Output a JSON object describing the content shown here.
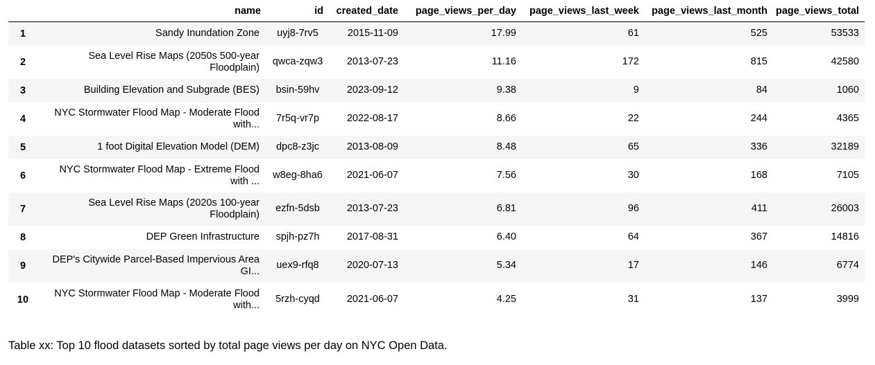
{
  "table": {
    "headers": {
      "name": "name",
      "id": "id",
      "created_date": "created_date",
      "page_views_per_day": "page_views_per_day",
      "page_views_last_week": "page_views_last_week",
      "page_views_last_month": "page_views_last_month",
      "page_views_total": "page_views_total"
    },
    "rows": [
      {
        "index": "1",
        "name": "Sandy Inundation Zone",
        "id": "uyj8-7rv5",
        "created_date": "2015-11-09",
        "page_views_per_day": "17.99",
        "page_views_last_week": "61",
        "page_views_last_month": "525",
        "page_views_total": "53533"
      },
      {
        "index": "2",
        "name": "Sea Level Rise Maps (2050s 500-year Floodplain)",
        "id": "qwca-zqw3",
        "created_date": "2013-07-23",
        "page_views_per_day": "11.16",
        "page_views_last_week": "172",
        "page_views_last_month": "815",
        "page_views_total": "42580"
      },
      {
        "index": "3",
        "name": "Building Elevation and Subgrade (BES)",
        "id": "bsin-59hv",
        "created_date": "2023-09-12",
        "page_views_per_day": "9.38",
        "page_views_last_week": "9",
        "page_views_last_month": "84",
        "page_views_total": "1060"
      },
      {
        "index": "4",
        "name": "NYC Stormwater Flood Map - Moderate Flood with...",
        "id": "7r5q-vr7p",
        "created_date": "2022-08-17",
        "page_views_per_day": "8.66",
        "page_views_last_week": "22",
        "page_views_last_month": "244",
        "page_views_total": "4365"
      },
      {
        "index": "5",
        "name": "1 foot Digital Elevation Model (DEM)",
        "id": "dpc8-z3jc",
        "created_date": "2013-08-09",
        "page_views_per_day": "8.48",
        "page_views_last_week": "65",
        "page_views_last_month": "336",
        "page_views_total": "32189"
      },
      {
        "index": "6",
        "name": "NYC Stormwater Flood Map - Extreme Flood with ...",
        "id": "w8eg-8ha6",
        "created_date": "2021-06-07",
        "page_views_per_day": "7.56",
        "page_views_last_week": "30",
        "page_views_last_month": "168",
        "page_views_total": "7105"
      },
      {
        "index": "7",
        "name": "Sea Level Rise Maps (2020s 100-year Floodplain)",
        "id": "ezfn-5dsb",
        "created_date": "2013-07-23",
        "page_views_per_day": "6.81",
        "page_views_last_week": "96",
        "page_views_last_month": "411",
        "page_views_total": "26003"
      },
      {
        "index": "8",
        "name": "DEP Green Infrastructure",
        "id": "spjh-pz7h",
        "created_date": "2017-08-31",
        "page_views_per_day": "6.40",
        "page_views_last_week": "64",
        "page_views_last_month": "367",
        "page_views_total": "14816"
      },
      {
        "index": "9",
        "name": "DEP's Citywide Parcel-Based Impervious Area GI...",
        "id": "uex9-rfq8",
        "created_date": "2020-07-13",
        "page_views_per_day": "5.34",
        "page_views_last_week": "17",
        "page_views_last_month": "146",
        "page_views_total": "6774"
      },
      {
        "index": "10",
        "name": "NYC Stormwater Flood Map - Moderate Flood with...",
        "id": "5rzh-cyqd",
        "created_date": "2021-06-07",
        "page_views_per_day": "4.25",
        "page_views_last_week": "31",
        "page_views_last_month": "137",
        "page_views_total": "3999"
      }
    ]
  },
  "caption": "Table xx: Top 10 flood datasets sorted by total page views per day on NYC Open Data."
}
